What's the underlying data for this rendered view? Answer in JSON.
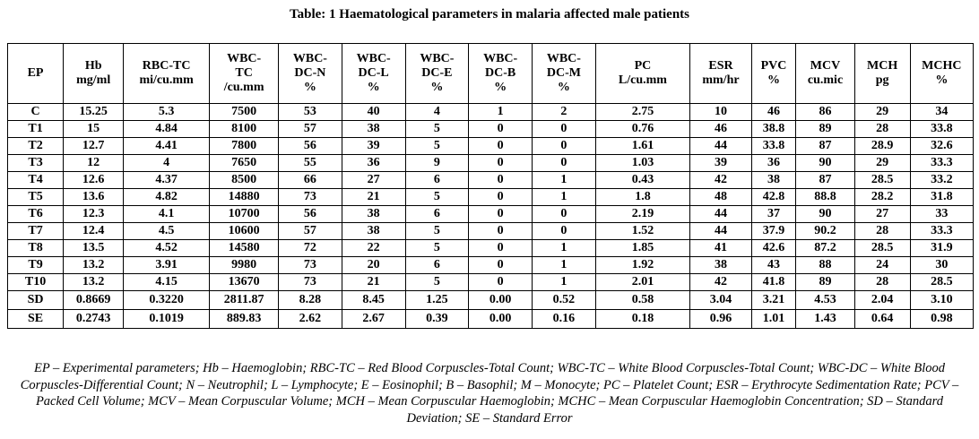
{
  "table": {
    "caption": "Table: 1 Haematological parameters in malaria affected male patients",
    "headers": [
      [
        "EP"
      ],
      [
        "Hb",
        "mg/ml"
      ],
      [
        "RBC-TC",
        "mi/cu.mm"
      ],
      [
        "WBC-",
        "TC",
        "/cu.mm"
      ],
      [
        "WBC-",
        "DC-N",
        "%"
      ],
      [
        "WBC-",
        "DC-L",
        "%"
      ],
      [
        "WBC-",
        "DC-E",
        "%"
      ],
      [
        "WBC-",
        "DC-B",
        "%"
      ],
      [
        "WBC-",
        "DC-M",
        "%"
      ],
      [
        "PC",
        "L/cu.mm"
      ],
      [
        "ESR",
        "mm/hr"
      ],
      [
        "PVC",
        "%"
      ],
      [
        "MCV",
        "cu.mic"
      ],
      [
        "MCH",
        "pg"
      ],
      [
        "MCHC",
        "%"
      ]
    ],
    "rows": [
      [
        "C",
        "15.25",
        "5.3",
        "7500",
        "53",
        "40",
        "4",
        "1",
        "2",
        "2.75",
        "10",
        "46",
        "86",
        "29",
        "34"
      ],
      [
        "T1",
        "15",
        "4.84",
        "8100",
        "57",
        "38",
        "5",
        "0",
        "0",
        "0.76",
        "46",
        "38.8",
        "89",
        "28",
        "33.8"
      ],
      [
        "T2",
        "12.7",
        "4.41",
        "7800",
        "56",
        "39",
        "5",
        "0",
        "0",
        "1.61",
        "44",
        "33.8",
        "87",
        "28.9",
        "32.6"
      ],
      [
        "T3",
        "12",
        "4",
        "7650",
        "55",
        "36",
        "9",
        "0",
        "0",
        "1.03",
        "39",
        "36",
        "90",
        "29",
        "33.3"
      ],
      [
        "T4",
        "12.6",
        "4.37",
        "8500",
        "66",
        "27",
        "6",
        "0",
        "1",
        "0.43",
        "42",
        "38",
        "87",
        "28.5",
        "33.2"
      ],
      [
        "T5",
        "13.6",
        "4.82",
        "14880",
        "73",
        "21",
        "5",
        "0",
        "1",
        "1.8",
        "48",
        "42.8",
        "88.8",
        "28.2",
        "31.8"
      ],
      [
        "T6",
        "12.3",
        "4.1",
        "10700",
        "56",
        "38",
        "6",
        "0",
        "0",
        "2.19",
        "44",
        "37",
        "90",
        "27",
        "33"
      ],
      [
        "T7",
        "12.4",
        "4.5",
        "10600",
        "57",
        "38",
        "5",
        "0",
        "0",
        "1.52",
        "44",
        "37.9",
        "90.2",
        "28",
        "33.3"
      ],
      [
        "T8",
        "13.5",
        "4.52",
        "14580",
        "72",
        "22",
        "5",
        "0",
        "1",
        "1.85",
        "41",
        "42.6",
        "87.2",
        "28.5",
        "31.9"
      ],
      [
        "T9",
        "13.2",
        "3.91",
        "9980",
        "73",
        "20",
        "6",
        "0",
        "1",
        "1.92",
        "38",
        "43",
        "88",
        "24",
        "30"
      ],
      [
        "T10",
        "13.2",
        "4.15",
        "13670",
        "73",
        "21",
        "5",
        "0",
        "1",
        "2.01",
        "42",
        "41.8",
        "89",
        "28",
        "28.5"
      ]
    ],
    "summary_rows": [
      [
        "SD",
        "0.8669",
        "0.3220",
        "2811.87",
        "8.28",
        "8.45",
        "1.25",
        "0.00",
        "0.52",
        "0.58",
        "3.04",
        "3.21",
        "4.53",
        "2.04",
        "3.10"
      ],
      [
        "SE",
        "0.2743",
        "0.1019",
        "889.83",
        "2.62",
        "2.67",
        "0.39",
        "0.00",
        "0.16",
        "0.18",
        "0.96",
        "1.01",
        "1.43",
        "0.64",
        "0.98"
      ]
    ],
    "footnote": "EP – Experimental parameters; Hb – Haemoglobin; RBC-TC – Red Blood Corpuscles-Total Count; WBC-TC – White Blood Corpuscles-Total Count; WBC-DC – White Blood Corpuscles-Differential Count; N – Neutrophil; L – Lymphocyte; E – Eosinophil; B – Basophil; M – Monocyte; PC – Platelet Count; ESR – Erythrocyte Sedimentation Rate; PCV – Packed Cell Volume; MCV – Mean Corpuscular Volume; MCH – Mean Corpuscular Haemoglobin; MCHC – Mean Corpuscular Haemoglobin Concentration; SD – Standard Deviation; SE – Standard Error"
  }
}
